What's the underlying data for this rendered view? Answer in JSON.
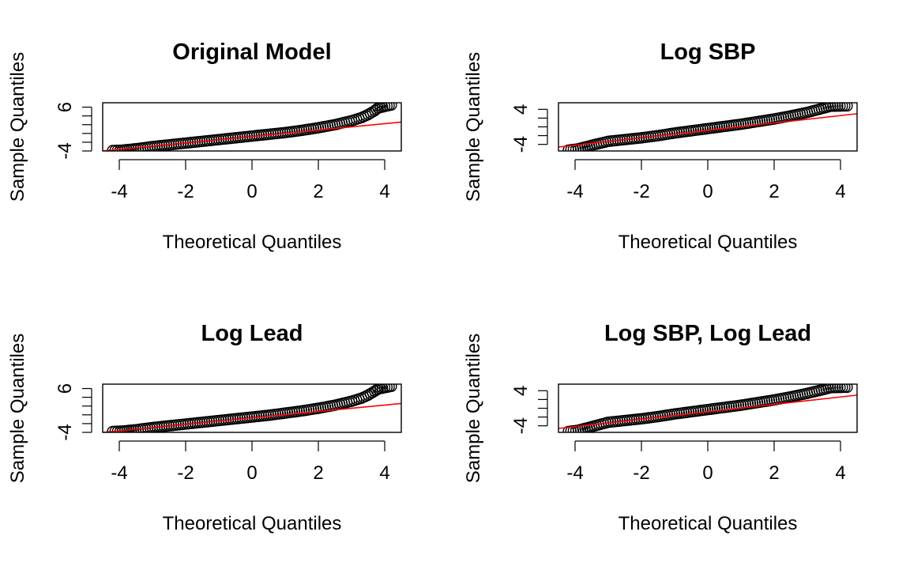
{
  "colors": {
    "points": "#000000",
    "reference_line": "#ff0000",
    "frame": "#000000"
  },
  "chart_data": [
    {
      "type": "scatter",
      "title": "Original Model",
      "xlabel": "Theoretical Quantiles",
      "ylabel": "Sample Quantiles",
      "xlim": [
        -4.5,
        4.5
      ],
      "ylim": [
        -4,
        7
      ],
      "x_ticks": [
        -4,
        -2,
        0,
        2,
        4
      ],
      "y_ticks": [
        -4,
        -2,
        0,
        2,
        4,
        6
      ],
      "y_tick_labels": [
        "-4",
        "",
        "",
        "",
        "",
        "6"
      ],
      "grid": false,
      "series": [
        {
          "values": [
            {
              "x": -4.2,
              "y": -3.9
            },
            {
              "x": -3.9,
              "y": -3.8
            },
            {
              "x": -3.5,
              "y": -3.5
            },
            {
              "x": -3.0,
              "y": -3.0
            },
            {
              "x": -2.5,
              "y": -2.6
            },
            {
              "x": -2.0,
              "y": -2.2
            },
            {
              "x": -1.5,
              "y": -1.8
            },
            {
              "x": -1.0,
              "y": -1.4
            },
            {
              "x": -0.5,
              "y": -1.0
            },
            {
              "x": 0.0,
              "y": -0.6
            },
            {
              "x": 0.5,
              "y": -0.2
            },
            {
              "x": 1.0,
              "y": 0.2
            },
            {
              "x": 1.5,
              "y": 0.7
            },
            {
              "x": 2.0,
              "y": 1.3
            },
            {
              "x": 2.5,
              "y": 2.0
            },
            {
              "x": 3.0,
              "y": 2.9
            },
            {
              "x": 3.3,
              "y": 3.6
            },
            {
              "x": 3.5,
              "y": 4.3
            },
            {
              "x": 3.7,
              "y": 5.2
            },
            {
              "x": 3.8,
              "y": 5.8
            },
            {
              "x": 4.2,
              "y": 6.5
            }
          ]
        }
      ],
      "reference_line": {
        "x": [
          -4.5,
          4.5
        ],
        "y": [
          -4.0,
          2.6
        ]
      }
    },
    {
      "type": "scatter",
      "title": "Log SBP",
      "xlabel": "Theoretical Quantiles",
      "ylabel": "Sample Quantiles",
      "xlim": [
        -4.5,
        4.5
      ],
      "ylim": [
        -5.5,
        5.5
      ],
      "x_ticks": [
        -4,
        -2,
        0,
        2,
        4
      ],
      "y_ticks": [
        -4,
        -2,
        0,
        2,
        4
      ],
      "y_tick_labels": [
        "-4",
        "",
        "",
        "",
        "4"
      ],
      "grid": false,
      "series": [
        {
          "values": [
            {
              "x": -4.2,
              "y": -5.3
            },
            {
              "x": -3.9,
              "y": -5.0
            },
            {
              "x": -3.7,
              "y": -4.6
            },
            {
              "x": -3.5,
              "y": -4.2
            },
            {
              "x": -3.0,
              "y": -3.3
            },
            {
              "x": -2.5,
              "y": -2.9
            },
            {
              "x": -2.0,
              "y": -2.5
            },
            {
              "x": -1.5,
              "y": -2.0
            },
            {
              "x": -1.0,
              "y": -1.4
            },
            {
              "x": -0.5,
              "y": -0.9
            },
            {
              "x": 0.0,
              "y": -0.4
            },
            {
              "x": 0.5,
              "y": 0.1
            },
            {
              "x": 1.0,
              "y": 0.6
            },
            {
              "x": 1.5,
              "y": 1.2
            },
            {
              "x": 2.0,
              "y": 1.8
            },
            {
              "x": 2.5,
              "y": 2.5
            },
            {
              "x": 3.0,
              "y": 3.3
            },
            {
              "x": 3.5,
              "y": 4.3
            },
            {
              "x": 3.7,
              "y": 4.7
            },
            {
              "x": 4.2,
              "y": 4.8
            }
          ]
        }
      ],
      "reference_line": {
        "x": [
          -4.5,
          4.5
        ],
        "y": [
          -4.6,
          3.0
        ]
      }
    },
    {
      "type": "scatter",
      "title": "Log Lead",
      "xlabel": "Theoretical Quantiles",
      "ylabel": "Sample Quantiles",
      "xlim": [
        -4.5,
        4.5
      ],
      "ylim": [
        -4,
        7
      ],
      "x_ticks": [
        -4,
        -2,
        0,
        2,
        4
      ],
      "y_ticks": [
        -4,
        -2,
        0,
        2,
        4,
        6
      ],
      "y_tick_labels": [
        "-4",
        "",
        "",
        "",
        "",
        "6"
      ],
      "grid": false,
      "series": [
        {
          "values": [
            {
              "x": -4.2,
              "y": -3.8
            },
            {
              "x": -3.9,
              "y": -3.7
            },
            {
              "x": -3.5,
              "y": -3.4
            },
            {
              "x": -3.0,
              "y": -2.9
            },
            {
              "x": -2.5,
              "y": -2.5
            },
            {
              "x": -2.0,
              "y": -2.1
            },
            {
              "x": -1.5,
              "y": -1.7
            },
            {
              "x": -1.0,
              "y": -1.3
            },
            {
              "x": -0.5,
              "y": -0.9
            },
            {
              "x": 0.0,
              "y": -0.5
            },
            {
              "x": 0.5,
              "y": -0.1
            },
            {
              "x": 1.0,
              "y": 0.4
            },
            {
              "x": 1.5,
              "y": 0.9
            },
            {
              "x": 2.0,
              "y": 1.5
            },
            {
              "x": 2.5,
              "y": 2.2
            },
            {
              "x": 3.0,
              "y": 3.1
            },
            {
              "x": 3.3,
              "y": 3.8
            },
            {
              "x": 3.5,
              "y": 4.5
            },
            {
              "x": 3.7,
              "y": 5.4
            },
            {
              "x": 3.8,
              "y": 5.9
            },
            {
              "x": 4.2,
              "y": 6.5
            }
          ]
        }
      ],
      "reference_line": {
        "x": [
          -4.5,
          4.5
        ],
        "y": [
          -4.0,
          2.6
        ]
      }
    },
    {
      "type": "scatter",
      "title": "Log SBP, Log Lead",
      "xlabel": "Theoretical Quantiles",
      "ylabel": "Sample Quantiles",
      "xlim": [
        -4.5,
        4.5
      ],
      "ylim": [
        -5.5,
        5.5
      ],
      "x_ticks": [
        -4,
        -2,
        0,
        2,
        4
      ],
      "y_ticks": [
        -4,
        -2,
        0,
        2,
        4
      ],
      "y_tick_labels": [
        "-4",
        "",
        "",
        "",
        "4"
      ],
      "grid": false,
      "series": [
        {
          "values": [
            {
              "x": -4.2,
              "y": -5.3
            },
            {
              "x": -3.9,
              "y": -5.0
            },
            {
              "x": -3.7,
              "y": -4.6
            },
            {
              "x": -3.5,
              "y": -4.2
            },
            {
              "x": -3.0,
              "y": -3.2
            },
            {
              "x": -2.5,
              "y": -2.8
            },
            {
              "x": -2.0,
              "y": -2.4
            },
            {
              "x": -1.5,
              "y": -1.9
            },
            {
              "x": -1.0,
              "y": -1.3
            },
            {
              "x": -0.5,
              "y": -0.8
            },
            {
              "x": 0.0,
              "y": -0.3
            },
            {
              "x": 0.5,
              "y": 0.2
            },
            {
              "x": 1.0,
              "y": 0.7
            },
            {
              "x": 1.5,
              "y": 1.3
            },
            {
              "x": 2.0,
              "y": 1.9
            },
            {
              "x": 2.5,
              "y": 2.6
            },
            {
              "x": 3.0,
              "y": 3.4
            },
            {
              "x": 3.5,
              "y": 4.3
            },
            {
              "x": 3.7,
              "y": 4.7
            },
            {
              "x": 4.2,
              "y": 4.8
            }
          ]
        }
      ],
      "reference_line": {
        "x": [
          -4.5,
          4.5
        ],
        "y": [
          -4.6,
          3.0
        ]
      }
    }
  ]
}
